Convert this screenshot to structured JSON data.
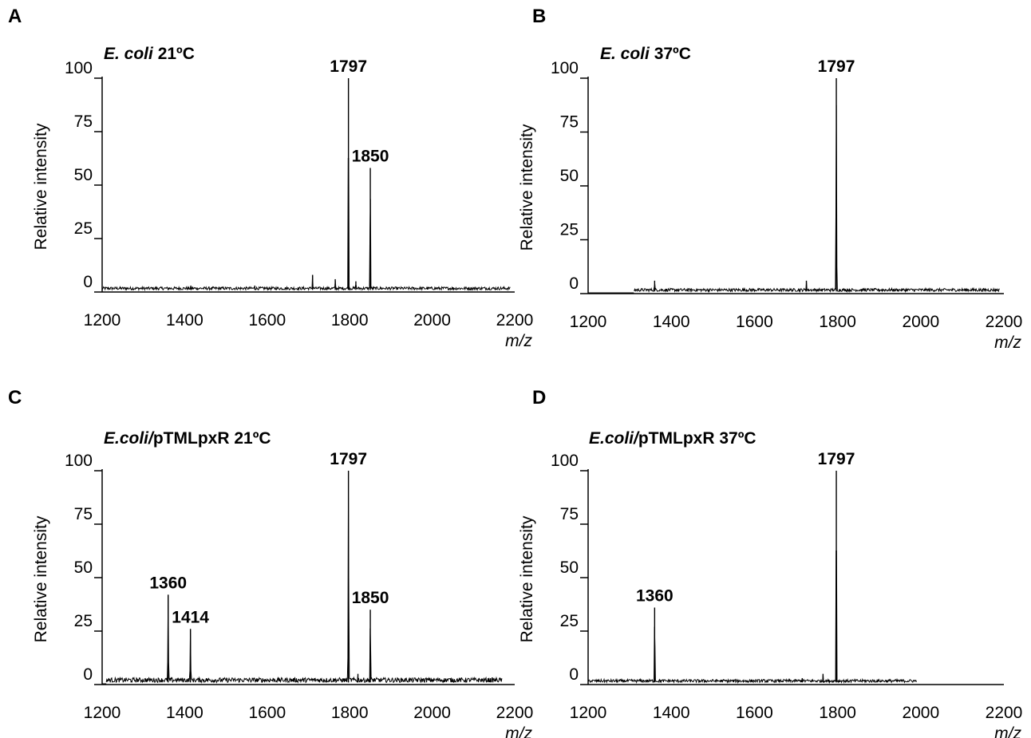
{
  "chart_data": [
    {
      "panel": "A",
      "type": "line",
      "title": {
        "italic": "E. coli",
        "rest": "  21ºC"
      },
      "ylabel": "Relative intensity",
      "xlabel": "m/z",
      "xlim": [
        1200,
        2200
      ],
      "ylim": [
        0,
        100
      ],
      "xticks": [
        "1200",
        "1400",
        "1600",
        "1800",
        "2000",
        "2200"
      ],
      "yticks": [
        "0",
        "25",
        "50",
        "75",
        "100"
      ],
      "trace_end": 2190,
      "noise_start": 1200,
      "peaks": [
        {
          "x": 1797,
          "y": 100,
          "label": "1797"
        },
        {
          "x": 1850,
          "y": 58,
          "label": "1850"
        },
        {
          "x": 1710,
          "y": 8
        },
        {
          "x": 1765,
          "y": 6
        },
        {
          "x": 1815,
          "y": 5
        },
        {
          "x": 1415,
          "y": 3
        },
        {
          "x": 1570,
          "y": 3
        }
      ]
    },
    {
      "panel": "B",
      "type": "line",
      "title": {
        "italic": "E. coli",
        "rest": "  37ºC"
      },
      "ylabel": "Relative intensity",
      "xlabel": "m/z",
      "xlim": [
        1200,
        2200
      ],
      "ylim": [
        0,
        100
      ],
      "xticks": [
        "1200",
        "1400",
        "1600",
        "1800",
        "2000",
        "2200"
      ],
      "yticks": [
        "0",
        "25",
        "50",
        "75",
        "100"
      ],
      "trace_end": 2190,
      "noise_start": 1310,
      "peaks": [
        {
          "x": 1797,
          "y": 100,
          "label": "1797"
        },
        {
          "x": 1360,
          "y": 6
        },
        {
          "x": 1725,
          "y": 6
        }
      ]
    },
    {
      "panel": "C",
      "type": "line",
      "title": {
        "italic": "E.coli/",
        "rest": "pTMLpxR  21ºC"
      },
      "ylabel": "Relative intensity",
      "xlabel": "m/z",
      "xlim": [
        1200,
        2200
      ],
      "ylim": [
        0,
        100
      ],
      "xticks": [
        "1200",
        "1400",
        "1600",
        "1800",
        "2000",
        "2200"
      ],
      "yticks": [
        "0",
        "25",
        "50",
        "75",
        "100"
      ],
      "trace_end": 2170,
      "noise_start": 1210,
      "peaks": [
        {
          "x": 1360,
          "y": 42,
          "label": "1360"
        },
        {
          "x": 1414,
          "y": 26,
          "label": "1414"
        },
        {
          "x": 1797,
          "y": 100,
          "label": "1797"
        },
        {
          "x": 1850,
          "y": 35,
          "label": "1850"
        },
        {
          "x": 1820,
          "y": 5
        }
      ]
    },
    {
      "panel": "D",
      "type": "line",
      "title": {
        "italic": "E.coli/",
        "rest": "pTMLpxR  37ºC"
      },
      "ylabel": "Relative intensity",
      "xlabel": "m/z",
      "xlim": [
        1200,
        2200
      ],
      "ylim": [
        0,
        100
      ],
      "xticks": [
        "1200",
        "1400",
        "1600",
        "1800",
        "2000",
        "2200"
      ],
      "yticks": [
        "0",
        "25",
        "50",
        "75",
        "100"
      ],
      "trace_end": 1990,
      "noise_start": 1200,
      "peaks": [
        {
          "x": 1360,
          "y": 36,
          "label": "1360"
        },
        {
          "x": 1797,
          "y": 100,
          "label": "1797"
        },
        {
          "x": 1765,
          "y": 5
        },
        {
          "x": 1715,
          "y": 3
        },
        {
          "x": 1580,
          "y": 2
        }
      ]
    }
  ]
}
